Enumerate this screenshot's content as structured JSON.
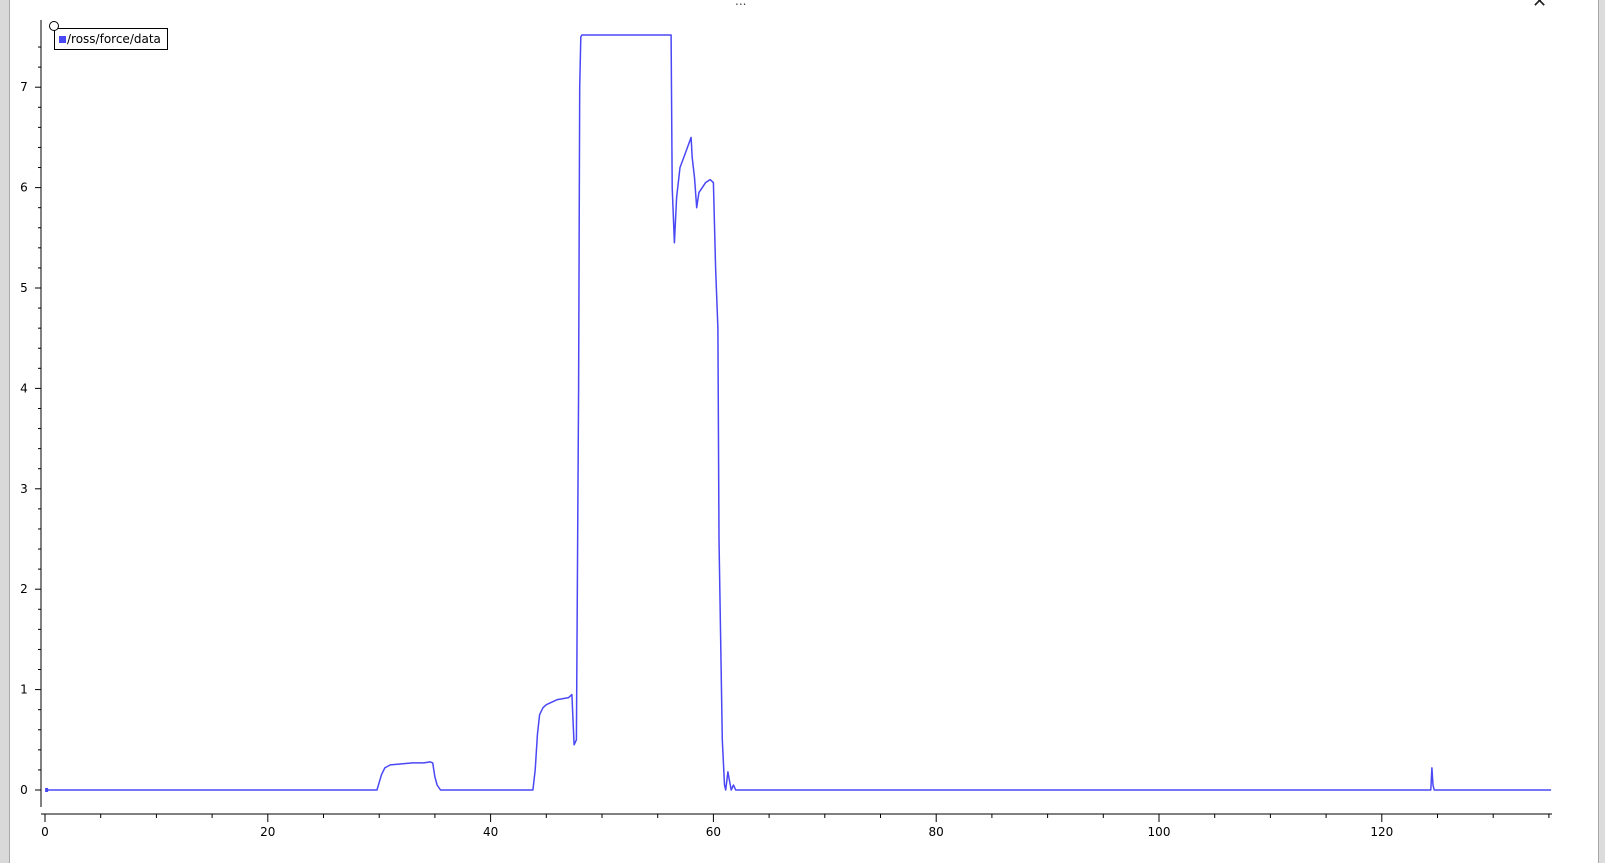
{
  "window": {
    "title": "...",
    "close_glyph": "✕"
  },
  "legend": {
    "label": "/ross/force/data",
    "color": "#4a48f5"
  },
  "chart_data": {
    "type": "line",
    "title": "",
    "xlabel": "",
    "ylabel": "",
    "xlim": [
      0,
      135.5
    ],
    "ylim": [
      -0.2,
      7.65
    ],
    "x_ticks": [
      0,
      20,
      40,
      60,
      80,
      100,
      120
    ],
    "y_ticks": [
      0,
      1,
      2,
      3,
      4,
      5,
      6,
      7
    ],
    "grid": false,
    "legend_position": "top-left",
    "series": [
      {
        "name": "/ross/force/data",
        "color": "#4a48f5",
        "x": [
          0.1,
          29.8,
          30.2,
          30.5,
          31,
          32,
          33,
          34,
          34.6,
          34.8,
          35.0,
          35.2,
          35.5,
          43.8,
          44.0,
          44.2,
          44.4,
          44.7,
          45,
          46,
          47,
          47.3,
          47.5,
          47.7,
          47.9,
          48.0,
          48.1,
          48.2,
          48.3,
          56.2,
          56.3,
          56.5,
          56.7,
          57.0,
          57.5,
          58.0,
          58.1,
          58.3,
          58.5,
          58.7,
          59.0,
          59.3,
          59.7,
          60.0,
          60.2,
          60.4,
          60.5,
          60.8,
          61.0,
          61.1,
          61.3,
          61.4,
          61.6,
          61.8,
          62.0,
          62.2,
          124.4,
          124.5,
          124.6,
          124.7,
          135.2
        ],
        "y": [
          0,
          0,
          0.15,
          0.22,
          0.25,
          0.26,
          0.27,
          0.27,
          0.28,
          0.27,
          0.13,
          0.05,
          0,
          0,
          0.2,
          0.55,
          0.75,
          0.82,
          0.85,
          0.9,
          0.92,
          0.95,
          0.45,
          0.5,
          4.0,
          7.0,
          7.5,
          7.52,
          7.52,
          7.52,
          6.0,
          5.45,
          5.9,
          6.2,
          6.35,
          6.5,
          6.3,
          6.1,
          5.8,
          5.95,
          6.0,
          6.05,
          6.08,
          6.05,
          5.2,
          4.6,
          2.5,
          0.5,
          0.05,
          0.0,
          0.18,
          0.12,
          0.0,
          0.05,
          0,
          0,
          0,
          0.22,
          0.05,
          0,
          0
        ]
      }
    ]
  }
}
